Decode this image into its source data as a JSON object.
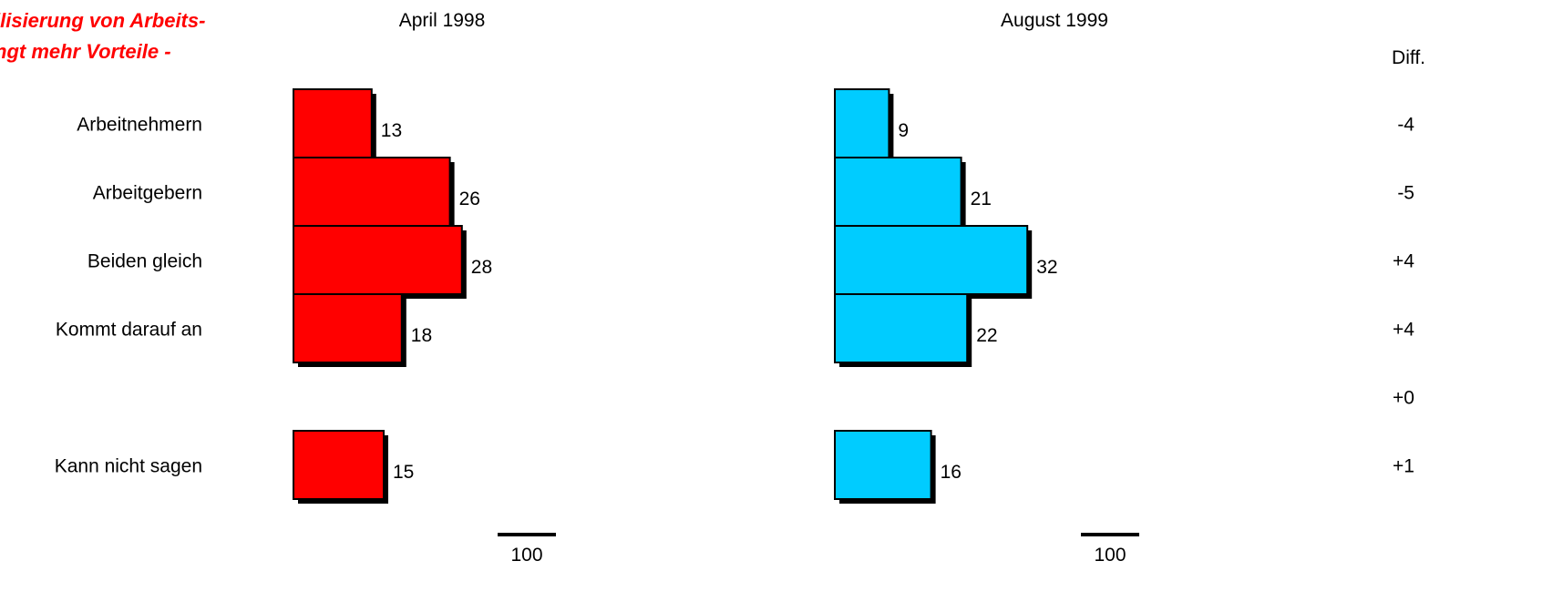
{
  "chart_data": {
    "type": "bar",
    "orientation": "horizontal",
    "title_lines": [
      "ilisierung von Arbeits-",
      "ngt mehr Vorteile -"
    ],
    "categories": [
      "Arbeitnehmern",
      "Arbeitgebern",
      "Beiden gleich",
      "Kommt darauf an",
      "",
      "Kann nicht sagen"
    ],
    "series": [
      {
        "name": "April 1998",
        "values": [
          13,
          26,
          28,
          18,
          null,
          15
        ],
        "color": "#ff0000"
      },
      {
        "name": "August 1999",
        "values": [
          9,
          21,
          32,
          22,
          null,
          16
        ],
        "color": "#00ccff"
      }
    ],
    "diff_header": "Diff.",
    "diff": [
      "-4",
      "-5",
      "+4",
      "+4",
      "+0",
      "+1"
    ],
    "scale_label": "100",
    "title_color": "#ff0000"
  }
}
